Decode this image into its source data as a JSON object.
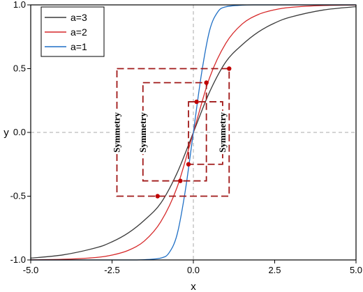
{
  "chart_data": {
    "type": "line",
    "xlabel": "x",
    "ylabel": "y",
    "xlim": [
      -5,
      5
    ],
    "ylim": [
      -1,
      1
    ],
    "x_ticks": [
      "-5.0",
      "-2.5",
      "0.0",
      "2.5",
      "5.0"
    ],
    "y_ticks": [
      "1.0",
      "0.5",
      "0.0",
      "-0.5",
      "-1.0"
    ],
    "x_tick_values": [
      -5,
      -2.5,
      0,
      2.5,
      5
    ],
    "y_tick_values": [
      1,
      0.5,
      0,
      -0.5,
      -1
    ],
    "reference_lines": [
      {
        "axis": "x",
        "value": 0
      },
      {
        "axis": "y",
        "value": 0
      }
    ],
    "legend_position": "top-left",
    "series": [
      {
        "name": "a=3",
        "color": "#3a3a3a",
        "x": [
          -5,
          -4,
          -3,
          -2.5,
          -2,
          -1.5,
          -1,
          -0.5,
          0,
          0.5,
          1,
          1.5,
          2,
          2.5,
          3,
          4,
          5
        ],
        "y": [
          -0.986,
          -0.96,
          -0.905,
          -0.858,
          -0.788,
          -0.687,
          -0.554,
          -0.318,
          0,
          0.318,
          0.554,
          0.687,
          0.788,
          0.858,
          0.905,
          0.96,
          0.986
        ]
      },
      {
        "name": "a=2",
        "color": "#d62728",
        "x": [
          -5,
          -4,
          -3,
          -2.5,
          -2,
          -1.5,
          -1,
          -0.5,
          0,
          0.5,
          1,
          1.5,
          2,
          2.5,
          3,
          4,
          5
        ],
        "y": [
          -0.999,
          -0.995,
          -0.981,
          -0.962,
          -0.925,
          -0.85,
          -0.7,
          -0.43,
          0,
          0.43,
          0.7,
          0.85,
          0.925,
          0.962,
          0.981,
          0.995,
          0.999
        ]
      },
      {
        "name": "a=1",
        "color": "#1f6fc5",
        "x": [
          -5,
          -3,
          -2,
          -1.5,
          -1,
          -0.75,
          -0.5,
          -0.25,
          0,
          0.25,
          0.5,
          0.75,
          1,
          1.5,
          2,
          3,
          5
        ],
        "y": [
          -1.0,
          -1.0,
          -1.0,
          -0.998,
          -0.985,
          -0.945,
          -0.8,
          -0.46,
          0,
          0.46,
          0.8,
          0.945,
          0.985,
          0.998,
          1.0,
          1.0,
          1.0
        ]
      }
    ],
    "highlight_points": [
      {
        "x": 1.1,
        "y": 0.5
      },
      {
        "x": -1.1,
        "y": -0.5
      },
      {
        "x": 0.4,
        "y": 0.39
      },
      {
        "x": -0.4,
        "y": -0.38
      },
      {
        "x": 0.1,
        "y": 0.24
      },
      {
        "x": -0.15,
        "y": -0.25
      }
    ],
    "symmetry_boxes": [
      {
        "x0": -2.35,
        "x1": 1.1,
        "y0": -0.5,
        "y1": 0.5,
        "label": "Symmetry"
      },
      {
        "x0": -1.55,
        "x1": 0.4,
        "y0": -0.38,
        "y1": 0.39,
        "label": "Symmetry"
      },
      {
        "x0": -0.15,
        "x1": 0.9,
        "y0": -0.25,
        "y1": 0.24,
        "label": "Symmetry"
      }
    ],
    "annotation_color": "#a01818"
  }
}
